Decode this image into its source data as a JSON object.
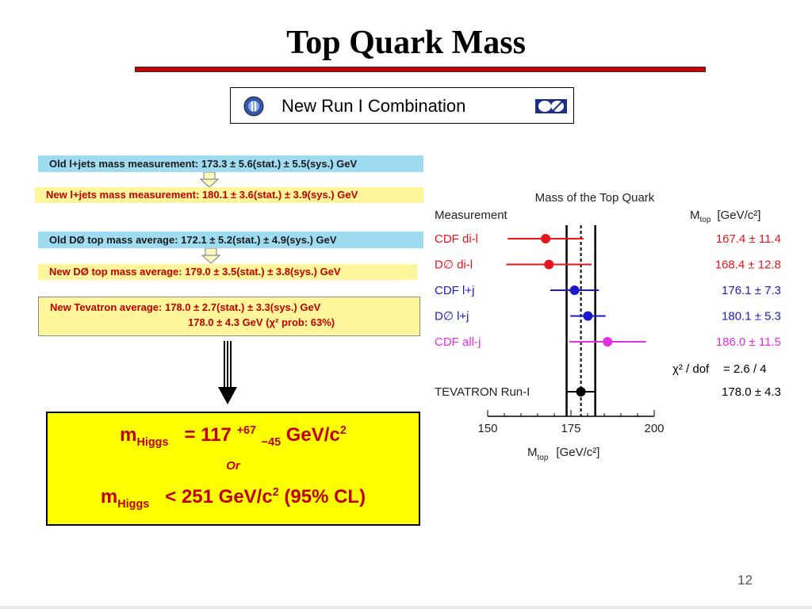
{
  "slide": {
    "title": "Top Quark Mass",
    "banner": "New Run I Combination",
    "page_number": "12"
  },
  "results": {
    "old_ljets": "Old l+jets mass measurement: 173.3 ± 5.6(stat.) ± 5.5(sys.) GeV",
    "new_ljets": "New l+jets mass measurement: 180.1 ± 3.6(stat.) ± 3.9(sys.) GeV",
    "old_d0": "Old DØ top mass average: 172.1 ± 5.2(stat.) ± 4.9(sys.) GeV",
    "new_d0": "New DØ top mass average: 179.0 ± 3.5(stat.) ± 3.8(sys.) GeV",
    "tevatron_line1": "New Tevatron average: 178.0 ± 2.7(stat.) ± 3.3(sys.) GeV",
    "tevatron_line2": "178.0 ± 4.3 GeV (χ² prob: 63%)"
  },
  "higgs": {
    "m_label": "m",
    "sub_label": "Higgs",
    "eq_prefix": "= 117",
    "up_err": "+67",
    "down_err": "−45",
    "unit": "GeV/c",
    "unit_exp": "2",
    "or_text": "Or",
    "limit_prefix": "< 251 GeV/c",
    "limit_suffix": "(95% CL)"
  },
  "colors": {
    "title_rule": "#cc0000",
    "blue_strip": "#9fdcf2",
    "yellow_strip": "#fff59a",
    "higgs_box": "#ffff00",
    "text_red": "#c00000"
  },
  "chart_data": {
    "type": "scatter",
    "title": "Mass of the Top Quark",
    "column_measurement": "Measurement",
    "column_value_label": "M",
    "column_value_sub": "top",
    "column_value_unit": "[GeV/c²]",
    "xlabel": "M",
    "xlabel_sub": "top",
    "xlabel_unit": "[GeV/c²]",
    "xlim": [
      150,
      200
    ],
    "xticks": [
      150,
      175,
      200
    ],
    "central_value": 178.0,
    "band": [
      173.7,
      182.3
    ],
    "chi2_label": "χ² / dof",
    "chi2_value": "=  2.6 / 4",
    "series": [
      {
        "name": "CDF di-l",
        "value": 167.4,
        "error": 11.4,
        "display": "167.4 ± 11.4",
        "color": "#e8141c"
      },
      {
        "name": "D∅   di-l",
        "value": 168.4,
        "error": 12.8,
        "display": "168.4 ± 12.8",
        "color": "#e8141c"
      },
      {
        "name": "CDF l+j",
        "value": 176.1,
        "error": 7.3,
        "display": "176.1 ±  7.3",
        "color": "#1a1acc"
      },
      {
        "name": "D∅   l+j",
        "value": 180.1,
        "error": 5.3,
        "display": "180.1 ±  5.3",
        "color": "#1a1acc"
      },
      {
        "name": "CDF all-j",
        "value": 186.0,
        "error": 11.5,
        "display": "186.0 ± 11.5",
        "color": "#e62ee6"
      }
    ],
    "combined": {
      "name": "TEVATRON Run-I",
      "value": 178.0,
      "error": 4.3,
      "display": "178.0 ±  4.3",
      "color": "#000000"
    }
  }
}
